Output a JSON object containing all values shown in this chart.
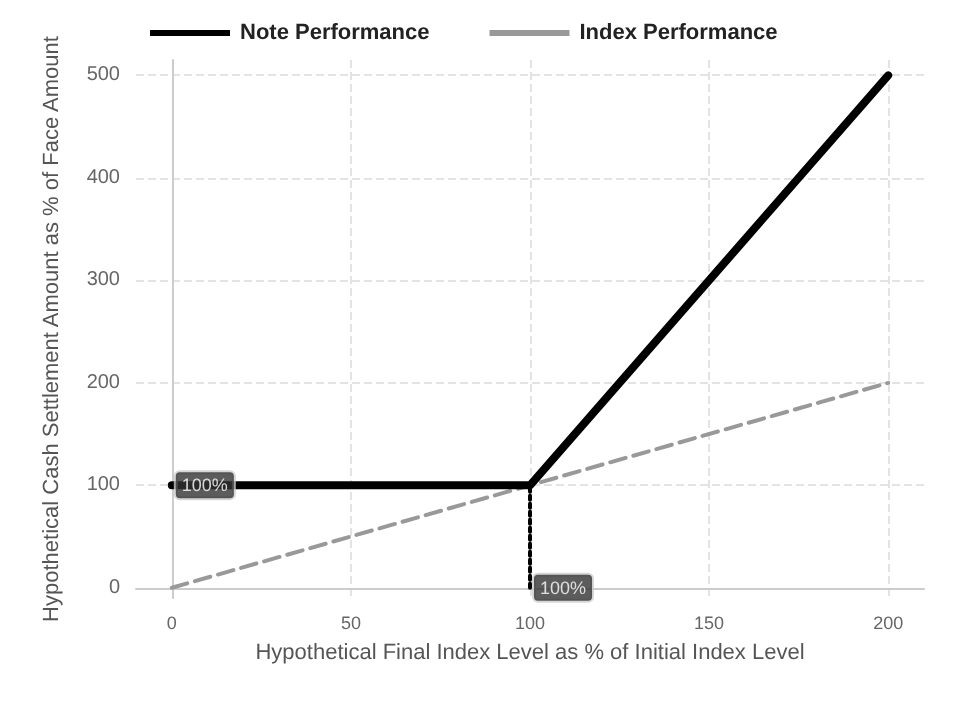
{
  "chart_data": {
    "type": "line",
    "xlabel": "Hypothetical Final Index Level as % of Initial Index Level",
    "ylabel": "Hypothetical Cash Settlement Amount as % of Face Amount",
    "series": [
      {
        "name": "Note Performance",
        "color": "#000000",
        "x": [
          0,
          100,
          200
        ],
        "values": [
          100,
          100,
          500
        ],
        "line_style": "solid"
      },
      {
        "name": "Index Performance",
        "color": "#999999",
        "x": [
          0,
          200
        ],
        "values": [
          0,
          200
        ],
        "line_style": "dashed"
      },
      {
        "type": "line",
        "color": "#000000",
        "x": [
          100,
          100
        ],
        "values": [
          0,
          100
        ],
        "line_style": "dotted"
      }
    ],
    "annotations": [
      {
        "text": "100%",
        "x": 0,
        "y": 100
      },
      {
        "text": "100%",
        "x": 100,
        "y": 0
      }
    ],
    "xlim": [
      -10,
      210
    ],
    "xticks": [
      0,
      50,
      100,
      150,
      200
    ],
    "ylim": [
      -10,
      515
    ],
    "yticks": [
      0,
      100,
      200,
      300,
      400,
      500
    ],
    "grid": true,
    "legend": "top left",
    "marker": "none"
  }
}
